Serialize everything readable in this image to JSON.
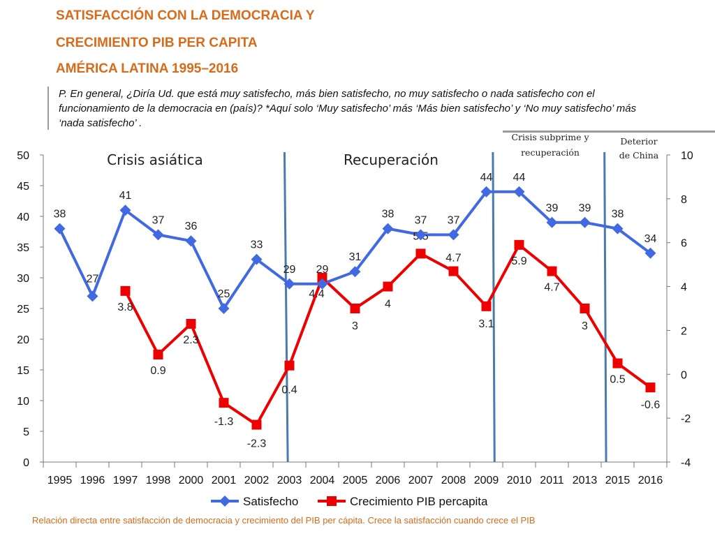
{
  "header": {
    "title_line1": "SATISFACCIÓN CON LA DEMOCRACIA Y",
    "title_line2": "CRECIMIENTO  PIB PER CAPITA",
    "title_line3": "AMÉRICA LATINA 1995–2016"
  },
  "question": "P. En general, ¿Diría Ud. que está muy satisfecho, más bien satisfecho, no muy satisfecho o nada satisfecho con el funcionamiento de la democracia en (país)? *Aquí  solo ‘Muy satisfecho’ más ‘Más bien satisfecho’  y ‘No muy satisfecho’ más ‘nada satisfecho’ .",
  "footnote": "Relación directa entre satisfacción de democracia y crecimiento del PIB per cápita. Crece la satisfacción cuando crece el PIB",
  "chart_data": {
    "type": "line",
    "categories": [
      "1995",
      "1996",
      "1997",
      "1998",
      "2000",
      "2001",
      "2002",
      "2003",
      "2004",
      "2005",
      "2006",
      "2007",
      "2008",
      "2009",
      "2010",
      "2011",
      "2013",
      "2015",
      "2016"
    ],
    "y_left": {
      "ylim": [
        0,
        50
      ],
      "ticks": [
        0,
        5,
        10,
        15,
        20,
        25,
        30,
        35,
        40,
        45,
        50
      ]
    },
    "y_right": {
      "ylim": [
        -4,
        10
      ],
      "ticks": [
        -4,
        -2,
        0,
        2,
        4,
        6,
        8,
        10
      ]
    },
    "series": [
      {
        "name": "Satisfecho",
        "color": "#4169e1",
        "marker": "diamond",
        "axis": "left",
        "values": [
          38,
          27,
          41,
          37,
          36,
          25,
          33,
          29,
          29,
          31,
          38,
          37,
          37,
          44,
          44,
          39,
          39,
          38,
          34
        ],
        "labels": [
          "38",
          "27",
          "41",
          "37",
          "36",
          "25",
          "33",
          "29",
          "29",
          "31",
          "38",
          "37",
          "37",
          "44",
          "44",
          "39",
          "39",
          "38",
          "34"
        ]
      },
      {
        "name": "Crecimiento PIB percapita",
        "color": "#ee0000",
        "marker": "square",
        "axis": "right",
        "values": [
          null,
          null,
          3.8,
          0.9,
          2.3,
          -1.3,
          -2.3,
          0.4,
          4.4,
          3,
          4,
          5.5,
          4.7,
          3.1,
          5.9,
          4.7,
          3,
          0.5,
          -0.6
        ],
        "labels": [
          null,
          null,
          "3.8",
          "0.9",
          "2.3",
          "-1.3",
          "-2.3",
          "0.4",
          "4.4",
          "3",
          "4",
          "5.5",
          "4.7",
          "3.1",
          "5.9",
          "4.7",
          "3",
          "0.5",
          "-0.6"
        ]
      }
    ],
    "annotations": [
      {
        "text": "Crisis asiática"
      },
      {
        "text": "Recuperación"
      },
      {
        "text": "Crisis subprime y recuperación"
      },
      {
        "text": "Deterior de China"
      }
    ],
    "legend_position": "bottom",
    "grid": false
  }
}
